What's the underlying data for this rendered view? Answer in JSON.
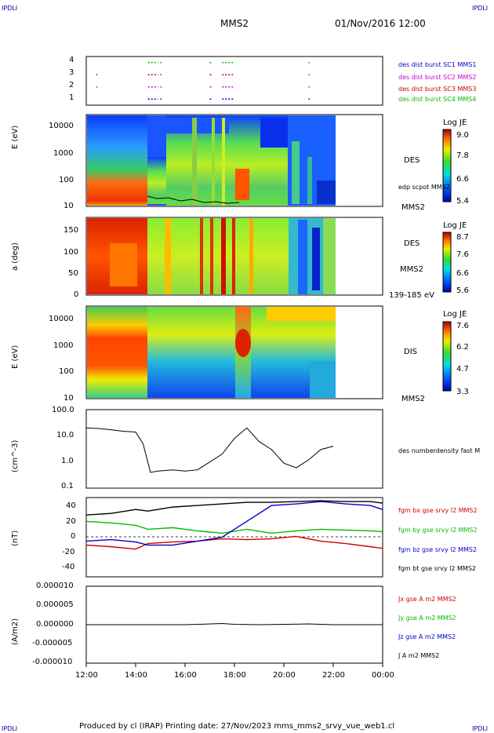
{
  "corner_label": "IPDLI",
  "header": {
    "spacecraft": "MMS2",
    "date": "01/Nov/2016 12:00"
  },
  "footer": "Produced by cl (IRAP)   Printing date: 27/Nov/2023   mms_mms2_srvy_vue_web1.cl",
  "time_axis": {
    "ticks": [
      "12:00",
      "14:00",
      "16:00",
      "18:00",
      "20:00",
      "22:00",
      "00:00"
    ]
  },
  "panels": {
    "burst": {
      "yticks": [
        "1",
        "2",
        "3",
        "4"
      ],
      "legend": [
        {
          "text": "des dist burst SC1 MMS1",
          "color": "#0000cc"
        },
        {
          "text": "des dist burst SC2 MMS2",
          "color": "#cc00cc"
        },
        {
          "text": "des dist burst SC3 MMS3",
          "color": "#cc0000"
        },
        {
          "text": "des dist burst SC4 MMS4",
          "color": "#00bb00"
        }
      ]
    },
    "des_energy": {
      "ylabel": "E (eV)",
      "yticks": [
        "10000",
        "1000",
        "100",
        "10"
      ],
      "label1": "DES",
      "label2": "edp scpot MMS2",
      "label3": "MMS2",
      "colorbar": {
        "title": "Log JE",
        "ticks": [
          "9.0",
          "7.8",
          "6.6",
          "5.4"
        ]
      }
    },
    "des_pitch": {
      "ylabel": "a (deg)",
      "yticks": [
        "150",
        "100",
        "50",
        "0"
      ],
      "label1": "DES",
      "label2": "MMS2",
      "label3": "139-185 eV",
      "colorbar": {
        "title": "Log JE",
        "ticks": [
          "8.7",
          "7.6",
          "6.6",
          "5.6"
        ]
      }
    },
    "dis_energy": {
      "ylabel": "E (eV)",
      "yticks": [
        "10000",
        "1000",
        "100",
        "10"
      ],
      "label1": "DIS",
      "label3": "MMS2",
      "colorbar": {
        "title": "Log JE",
        "ticks": [
          "7.6",
          "6.2",
          "4.7",
          "3.3"
        ]
      }
    },
    "density": {
      "ylabel": "(cm^-3)",
      "yticks": [
        "100.0",
        "10.0",
        "1.0",
        "0.1"
      ],
      "label1": "des numberdensity fast M"
    },
    "bfield": {
      "ylabel": "(nT)",
      "yticks": [
        "40",
        "20",
        "0",
        "-20",
        "-40"
      ],
      "legend": [
        {
          "text": "fgm bx gse srvy l2 MMS2",
          "color": "#cc0000"
        },
        {
          "text": "fgm by gse srvy l2 MMS2",
          "color": "#00bb00"
        },
        {
          "text": "fgm bz gse srvy l2 MMS2",
          "color": "#0000cc"
        },
        {
          "text": "fgm bt gse srvy l2 MMS2",
          "color": "#000000"
        }
      ]
    },
    "current": {
      "ylabel": "(A/m2)",
      "yticks": [
        "0.000010",
        "0.000005",
        "0.000000",
        "-0.000005",
        "-0.000010"
      ],
      "legend": [
        {
          "text": "Jx gse A m2 MMS2",
          "color": "#cc0000"
        },
        {
          "text": "Jy gse A m2 MMS2",
          "color": "#00bb00"
        },
        {
          "text": "Jz gse A m2 MMS2",
          "color": "#0000cc"
        },
        {
          "text": "J A m2 MMS2",
          "color": "#000000"
        }
      ]
    }
  },
  "chart_data": [
    {
      "type": "scatter",
      "panel": "burst",
      "ylim": [
        0.5,
        4.5
      ],
      "series": [
        {
          "name": "des dist burst SC1 MMS1",
          "y": 1,
          "intervals": [
            [
              14.5,
              14.9
            ],
            [
              15.0,
              15.05
            ],
            [
              17.0,
              17.1
            ],
            [
              17.5,
              18.0
            ],
            [
              21.0,
              21.05
            ]
          ]
        },
        {
          "name": "des dist burst SC2 MMS2",
          "y": 2,
          "intervals": [
            [
              12.4,
              12.45
            ],
            [
              14.5,
              14.9
            ],
            [
              15.0,
              15.05
            ],
            [
              17.0,
              17.1
            ],
            [
              17.5,
              18.0
            ],
            [
              21.0,
              21.05
            ]
          ]
        },
        {
          "name": "des dist burst SC3 MMS3",
          "y": 3,
          "intervals": [
            [
              12.4,
              12.45
            ],
            [
              14.5,
              14.9
            ],
            [
              15.0,
              15.05
            ],
            [
              17.0,
              17.1
            ],
            [
              17.5,
              18.0
            ],
            [
              21.0,
              21.05
            ]
          ]
        },
        {
          "name": "des dist burst SC4 MMS4",
          "y": 4,
          "intervals": [
            [
              14.5,
              14.9
            ],
            [
              15.0,
              15.05
            ],
            [
              17.0,
              17.1
            ],
            [
              17.5,
              18.0
            ],
            [
              21.0,
              21.05
            ]
          ]
        }
      ]
    },
    {
      "type": "line",
      "panel": "density",
      "yscale": "log",
      "ylim": [
        0.1,
        100
      ],
      "x": [
        12.0,
        12.5,
        13.0,
        13.5,
        14.0,
        14.3,
        14.6,
        14.9,
        15.5,
        16.0,
        16.5,
        17.0,
        17.5,
        18.0,
        18.5,
        19.0,
        19.5,
        20.0,
        20.5,
        21.0,
        21.5,
        22.0
      ],
      "y": [
        20,
        19,
        17,
        15,
        14,
        5,
        0.4,
        0.45,
        0.5,
        0.45,
        0.5,
        1.0,
        2.0,
        8.0,
        20,
        6,
        3,
        0.9,
        0.6,
        1.2,
        3,
        4
      ]
    },
    {
      "type": "line",
      "panel": "bfield",
      "ylim": [
        -50,
        50
      ],
      "x": [
        12.0,
        13.0,
        14.0,
        14.5,
        15.5,
        16.5,
        17.5,
        18.5,
        19.5,
        20.5,
        21.5,
        22.5,
        23.5,
        24.0
      ],
      "series": [
        {
          "name": "fgm bx gse srvy l2 MMS2",
          "values": [
            -10,
            -12,
            -15,
            -8,
            -6,
            -5,
            -2,
            -3,
            -2,
            1,
            -5,
            -8,
            -12,
            -14
          ]
        },
        {
          "name": "fgm by gse srvy l2 MMS2",
          "values": [
            20,
            18,
            15,
            10,
            12,
            8,
            5,
            10,
            5,
            8,
            10,
            9,
            8,
            7
          ]
        },
        {
          "name": "fgm bz gse srvy l2 MMS2",
          "values": [
            -5,
            -3,
            -6,
            -10,
            -10,
            -5,
            0,
            20,
            40,
            42,
            45,
            42,
            40,
            35
          ]
        },
        {
          "name": "fgm bt gse srvy l2 MMS2",
          "values": [
            28,
            30,
            35,
            33,
            38,
            40,
            42,
            44,
            44,
            45,
            46,
            45,
            45,
            43
          ]
        }
      ]
    },
    {
      "type": "line",
      "panel": "current",
      "ylim": [
        -1e-05,
        1e-05
      ],
      "x": [
        12.0,
        14.0,
        16.0,
        17.5,
        18.0,
        19.0,
        21.0,
        22.0,
        24.0
      ],
      "y": [
        0,
        0,
        0,
        3e-07,
        1e-07,
        0,
        2e-07,
        0,
        0
      ]
    }
  ],
  "colors": {
    "accent": "#0000aa"
  }
}
